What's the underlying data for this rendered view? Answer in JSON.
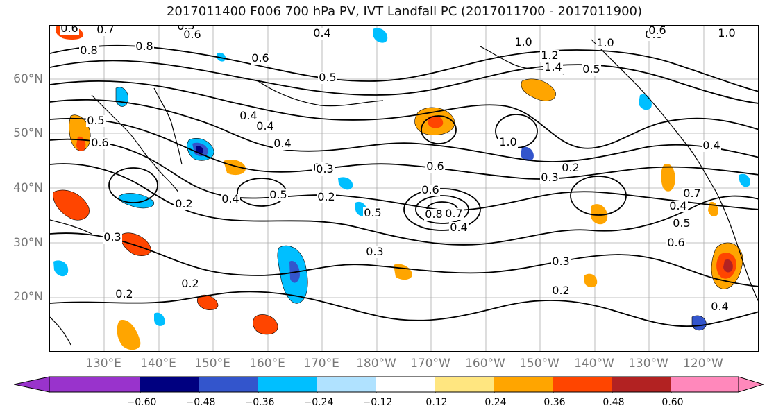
{
  "title": "2017011400 F006 700 hPa PV, IVT Landfall PC (2017011700 - 2017011900)",
  "lat_labels": [
    "60°N",
    "50°N",
    "40°N",
    "30°N",
    "20°N"
  ],
  "lon_labels": [
    "130°E",
    "140°E",
    "150°E",
    "160°E",
    "170°E",
    "180°W",
    "170°W",
    "160°W",
    "150°W",
    "140°W",
    "130°W",
    "120°W"
  ],
  "colorbar": {
    "ticks": [
      "−0.60",
      "−0.48",
      "−0.36",
      "−0.24",
      "−0.12",
      "0.12",
      "0.24",
      "0.36",
      "0.48",
      "0.60"
    ],
    "colors": [
      "#9933cc",
      "#000080",
      "#3355cc",
      "#00bfff",
      "#b0e2ff",
      "#ffffff",
      "#ffe680",
      "#ffa500",
      "#ff4500",
      "#b22222",
      "#ff88bb"
    ]
  },
  "contour_labels": [
    "0.6",
    "0.7",
    "0.5",
    "0.6",
    "0.4",
    "0.8",
    "0.8",
    "0.6",
    "1.0",
    "1.2",
    "1.4",
    "1.0",
    "0.8",
    "1.0",
    "0.6",
    "0.4",
    "0.5",
    "0.4",
    "0.3",
    "0.4",
    "0.3",
    "0.6",
    "0.8",
    "0.7",
    "0.5",
    "0.3",
    "0.2",
    "0.2",
    "0.5",
    "0.4",
    "0.6",
    "0.4",
    "0.3",
    "0.2",
    "0.2",
    "0.2",
    "0.3",
    "0.2",
    "0.7",
    "0.6",
    "0.5",
    "0.4",
    "0.4",
    "0.5",
    "0.6",
    "0.5",
    "1.0",
    "0.3",
    "0.4"
  ]
}
